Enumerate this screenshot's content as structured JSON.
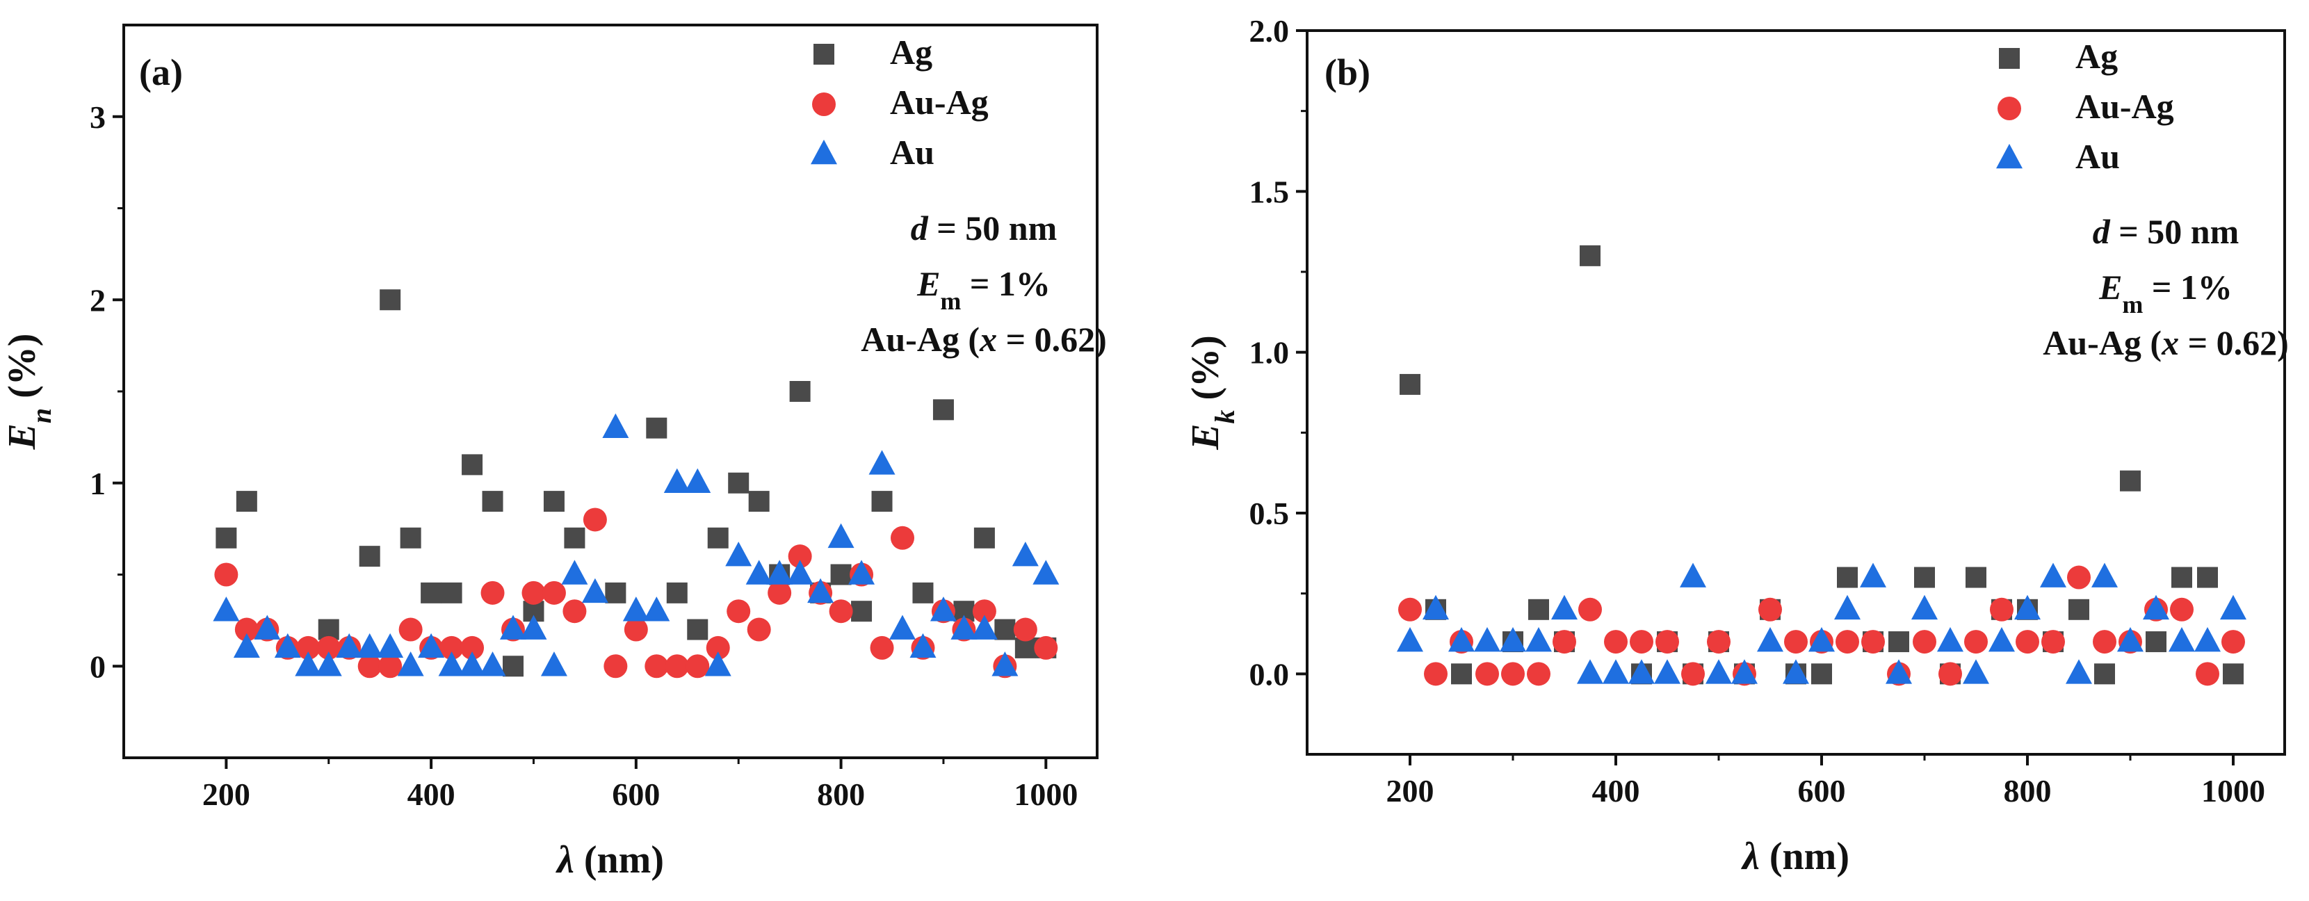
{
  "colors": {
    "Ag": "#4a4a4a",
    "Au-Ag": "#ec3b3b",
    "Au": "#1f6fe0"
  },
  "chart_data": [
    {
      "type": "scatter",
      "panel_label": "(a)",
      "xlabel": "λ (nm)",
      "ylabel": "E_n (%)",
      "ylabel_main": "E",
      "ylabel_sub": "n",
      "ylabel_rest": " (%)",
      "xlim": [
        100,
        1050
      ],
      "ylim": [
        -0.5,
        3.5
      ],
      "xticks": [
        200,
        400,
        600,
        800,
        1000
      ],
      "yticks": [
        0,
        1,
        2,
        3
      ],
      "xtick_labels": [
        "200",
        "400",
        "600",
        "800",
        "1000"
      ],
      "ytick_labels": [
        "0",
        "1",
        "2",
        "3"
      ],
      "legend": [
        "Ag",
        "Au-Ag",
        "Au"
      ],
      "annotations": {
        "line1_var": "d",
        "line1_rest": " = 50 nm",
        "line2_var": "E",
        "line2_sub": "m",
        "line2_rest": " = 1%",
        "line3_pre": "Au-Ag (",
        "line3_var": "x",
        "line3_rest": " = 0.62)"
      },
      "series": [
        {
          "name": "Ag",
          "marker": "square",
          "x": [
            200,
            220,
            300,
            340,
            360,
            380,
            400,
            420,
            440,
            460,
            480,
            500,
            520,
            540,
            580,
            620,
            640,
            660,
            680,
            700,
            720,
            740,
            760,
            780,
            800,
            820,
            840,
            880,
            900,
            920,
            940,
            960,
            980,
            1000
          ],
          "y": [
            0.7,
            0.9,
            0.2,
            0.6,
            2.0,
            0.7,
            0.4,
            0.4,
            1.1,
            0.9,
            0.0,
            0.3,
            0.9,
            0.7,
            0.4,
            1.3,
            0.4,
            0.2,
            0.7,
            1.0,
            0.9,
            0.5,
            1.5,
            0.4,
            0.5,
            0.3,
            0.9,
            0.4,
            1.4,
            0.3,
            0.7,
            0.2,
            0.1,
            0.1
          ]
        },
        {
          "name": "Au-Ag",
          "marker": "circle",
          "x": [
            200,
            220,
            240,
            260,
            280,
            300,
            320,
            340,
            360,
            380,
            400,
            420,
            440,
            460,
            480,
            500,
            520,
            540,
            560,
            580,
            600,
            620,
            640,
            660,
            680,
            700,
            720,
            740,
            760,
            780,
            800,
            820,
            840,
            860,
            880,
            900,
            920,
            940,
            960,
            980,
            1000
          ],
          "y": [
            0.5,
            0.2,
            0.2,
            0.1,
            0.1,
            0.1,
            0.1,
            0.0,
            0.0,
            0.2,
            0.1,
            0.1,
            0.1,
            0.4,
            0.2,
            0.4,
            0.4,
            0.3,
            0.8,
            0.0,
            0.2,
            0.0,
            0.0,
            0.0,
            0.1,
            0.3,
            0.2,
            0.4,
            0.6,
            0.4,
            0.3,
            0.5,
            0.1,
            0.7,
            0.1,
            0.3,
            0.2,
            0.3,
            0.0,
            0.2,
            0.1
          ]
        },
        {
          "name": "Au",
          "marker": "triangle",
          "x": [
            200,
            220,
            240,
            260,
            280,
            300,
            320,
            340,
            360,
            380,
            400,
            420,
            440,
            460,
            480,
            500,
            520,
            540,
            560,
            580,
            600,
            620,
            640,
            660,
            680,
            700,
            720,
            740,
            760,
            780,
            800,
            820,
            840,
            860,
            880,
            900,
            920,
            940,
            960,
            980,
            1000
          ],
          "y": [
            0.3,
            0.1,
            0.2,
            0.1,
            0.0,
            0.0,
            0.1,
            0.1,
            0.1,
            0.0,
            0.1,
            0.0,
            0.0,
            0.0,
            0.2,
            0.2,
            0.0,
            0.5,
            0.4,
            1.3,
            0.3,
            0.3,
            1.0,
            1.0,
            0.0,
            0.6,
            0.5,
            0.5,
            0.5,
            0.4,
            0.7,
            0.5,
            1.1,
            0.2,
            0.1,
            0.3,
            0.2,
            0.2,
            0.0,
            0.6,
            0.5
          ]
        }
      ]
    },
    {
      "type": "scatter",
      "panel_label": "(b)",
      "xlabel": "λ (nm)",
      "ylabel": "E_k (%)",
      "ylabel_main": "E",
      "ylabel_sub": "k",
      "ylabel_rest": " (%)",
      "xlim": [
        100,
        1050
      ],
      "ylim": [
        -0.25,
        2.0
      ],
      "xticks": [
        200,
        400,
        600,
        800,
        1000
      ],
      "yticks": [
        0.0,
        0.5,
        1.0,
        1.5,
        2.0
      ],
      "xtick_labels": [
        "200",
        "400",
        "600",
        "800",
        "1000"
      ],
      "ytick_labels": [
        "0.0",
        "0.5",
        "1.0",
        "1.5",
        "2.0"
      ],
      "legend": [
        "Ag",
        "Au-Ag",
        "Au"
      ],
      "annotations": {
        "line1_var": "d",
        "line1_rest": " = 50 nm",
        "line2_var": "E",
        "line2_sub": "m",
        "line2_rest": " = 1%",
        "line3_pre": "Au-Ag (",
        "line3_var": "x",
        "line3_rest": " = 0.62)"
      },
      "series": [
        {
          "name": "Ag",
          "marker": "square",
          "x": [
            200,
            225,
            250,
            300,
            325,
            350,
            375,
            425,
            450,
            475,
            500,
            525,
            550,
            575,
            600,
            625,
            650,
            675,
            700,
            725,
            750,
            775,
            800,
            825,
            850,
            875,
            900,
            925,
            950,
            975,
            1000
          ],
          "y": [
            0.9,
            0.2,
            0.0,
            0.1,
            0.2,
            0.1,
            1.3,
            0.0,
            0.1,
            0.0,
            0.1,
            0.0,
            0.2,
            0.0,
            0.0,
            0.3,
            0.1,
            0.1,
            0.3,
            0.0,
            0.3,
            0.2,
            0.2,
            0.1,
            0.2,
            0.0,
            0.6,
            0.1,
            0.3,
            0.3,
            0.0
          ]
        },
        {
          "name": "Au-Ag",
          "marker": "circle",
          "x": [
            200,
            225,
            250,
            275,
            300,
            325,
            350,
            375,
            400,
            425,
            450,
            475,
            500,
            525,
            550,
            575,
            600,
            625,
            650,
            675,
            700,
            725,
            750,
            775,
            800,
            825,
            850,
            875,
            900,
            925,
            950,
            975,
            1000
          ],
          "y": [
            0.2,
            0.0,
            0.1,
            0.0,
            0.0,
            0.0,
            0.1,
            0.2,
            0.1,
            0.1,
            0.1,
            0.0,
            0.1,
            0.0,
            0.2,
            0.1,
            0.1,
            0.1,
            0.1,
            0.0,
            0.1,
            0.0,
            0.1,
            0.2,
            0.1,
            0.1,
            0.3,
            0.1,
            0.1,
            0.2,
            0.2,
            0.0,
            0.1
          ]
        },
        {
          "name": "Au",
          "marker": "triangle",
          "x": [
            200,
            225,
            250,
            275,
            300,
            325,
            350,
            375,
            400,
            425,
            450,
            475,
            500,
            525,
            550,
            575,
            600,
            625,
            650,
            675,
            700,
            725,
            750,
            775,
            800,
            825,
            850,
            875,
            900,
            925,
            950,
            975,
            1000
          ],
          "y": [
            0.1,
            0.2,
            0.1,
            0.1,
            0.1,
            0.1,
            0.2,
            0.0,
            0.0,
            0.0,
            0.0,
            0.3,
            0.0,
            0.0,
            0.1,
            0.0,
            0.1,
            0.2,
            0.3,
            0.0,
            0.2,
            0.1,
            0.0,
            0.1,
            0.2,
            0.3,
            0.0,
            0.3,
            0.1,
            0.2,
            0.1,
            0.1,
            0.2
          ]
        }
      ]
    }
  ]
}
